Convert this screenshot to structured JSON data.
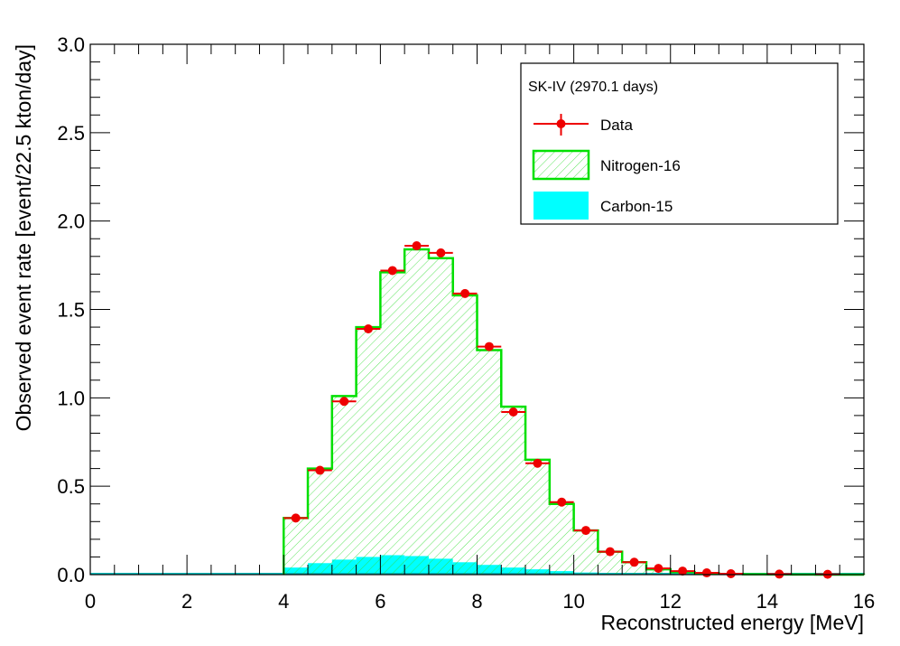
{
  "chart_data": {
    "type": "histogram",
    "xlabel": "Reconstructed energy [MeV]",
    "ylabel": "Observed event rate [event/22.5 kton/day]",
    "xlim": [
      0,
      16
    ],
    "ylim": [
      0,
      3.0
    ],
    "x_ticks": [
      "0",
      "2",
      "4",
      "6",
      "8",
      "10",
      "12",
      "14",
      "16"
    ],
    "y_ticks": [
      "0.0",
      "0.5",
      "1.0",
      "1.5",
      "2.0",
      "2.5",
      "3.0"
    ],
    "x_tick_values": [
      0,
      2,
      4,
      6,
      8,
      10,
      12,
      14,
      16
    ],
    "y_tick_values": [
      0,
      0.5,
      1.0,
      1.5,
      2.0,
      2.5,
      3.0
    ],
    "bin_edges": [
      4.0,
      4.5,
      5.0,
      5.5,
      6.0,
      6.5,
      7.0,
      7.5,
      8.0,
      8.5,
      9.0,
      9.5,
      10.0,
      10.5,
      11.0,
      11.5,
      12.0,
      12.5,
      13.0,
      13.5,
      14.0,
      14.5,
      15.0,
      15.5,
      16.0
    ],
    "legend_title": "SK-IV (2970.1 days)",
    "legend_position": "top-right",
    "grid": false,
    "series": [
      {
        "name": "Nitrogen-16",
        "kind": "hatched-histogram",
        "color": "#00e000",
        "values": [
          0.32,
          0.6,
          1.01,
          1.4,
          1.71,
          1.84,
          1.79,
          1.58,
          1.27,
          0.95,
          0.65,
          0.4,
          0.25,
          0.13,
          0.07,
          0.03,
          0.015,
          0.008,
          0.004,
          0.002,
          0.001,
          0.0005,
          0.0003,
          0.0001
        ]
      },
      {
        "name": "Carbon-15",
        "kind": "filled-histogram",
        "color": "#00ffff",
        "values": [
          0.04,
          0.065,
          0.085,
          0.1,
          0.11,
          0.105,
          0.09,
          0.07,
          0.055,
          0.04,
          0.03,
          0.02,
          0.012,
          0.007,
          0.004,
          0.002,
          0.001,
          0.0,
          0.0,
          0.0,
          0.0,
          0.0,
          0.0,
          0.0
        ]
      },
      {
        "name": "Data",
        "kind": "points-with-xerr",
        "color": "#ee0000",
        "x": [
          4.25,
          4.75,
          5.25,
          5.75,
          6.25,
          6.75,
          7.25,
          7.75,
          8.25,
          8.75,
          9.25,
          9.75,
          10.25,
          10.75,
          11.25,
          11.75,
          12.25,
          12.75,
          13.25,
          14.25,
          15.25
        ],
        "xerr": [
          0.25,
          0.25,
          0.25,
          0.25,
          0.25,
          0.25,
          0.25,
          0.25,
          0.25,
          0.25,
          0.25,
          0.25,
          0.25,
          0.25,
          0.25,
          0.25,
          0.25,
          0.25,
          0.25,
          0.25,
          0.25
        ],
        "y": [
          0.32,
          0.59,
          0.98,
          1.39,
          1.72,
          1.86,
          1.82,
          1.59,
          1.29,
          0.92,
          0.63,
          0.41,
          0.25,
          0.13,
          0.07,
          0.035,
          0.02,
          0.01,
          0.005,
          0.003,
          0.002
        ]
      }
    ]
  }
}
